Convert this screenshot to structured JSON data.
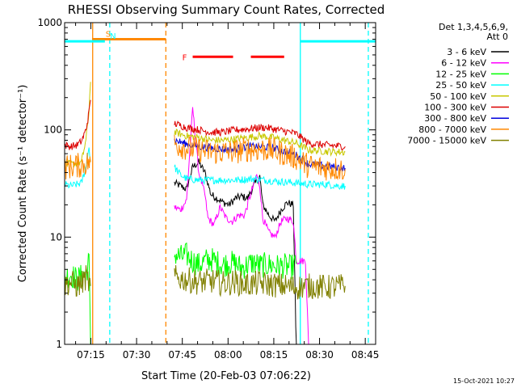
{
  "chart_data": {
    "type": "line",
    "title": "RHESSI Observing Summary Count Rates, Corrected",
    "ylabel": "Corrected Count Rate (s⁻¹ detector⁻¹)",
    "xlabel": "Start Time (20-Feb-03 07:06:22)",
    "footer": "15-Oct-2021 10:27",
    "x_unit": "minutes after 07:06:22",
    "xlim": [
      0,
      102
    ],
    "ylim": [
      1,
      1000
    ],
    "y_scale": "log",
    "xticks": [
      {
        "t": 8.6,
        "label": "07:15"
      },
      {
        "t": 23.6,
        "label": "07:30"
      },
      {
        "t": 38.6,
        "label": "07:45"
      },
      {
        "t": 53.6,
        "label": "08:00"
      },
      {
        "t": 68.6,
        "label": "08:15"
      },
      {
        "t": 83.6,
        "label": "08:30"
      },
      {
        "t": 98.6,
        "label": "08:45"
      }
    ],
    "yticks": [
      {
        "v": 1,
        "label": "1"
      },
      {
        "v": 10,
        "label": "10"
      },
      {
        "v": 100,
        "label": "100"
      },
      {
        "v": 1000,
        "label": "1000"
      }
    ],
    "legend": {
      "header": [
        "Det 1,3,4,5,6,9,",
        "Att 0"
      ],
      "position": "right"
    },
    "series": [
      {
        "name": "3 - 6 keV",
        "color": "#000000",
        "segments": [
          [
            [
              0,
              null
            ]
          ],
          [
            [
              36,
              32
            ],
            [
              38,
              30
            ],
            [
              40,
              28
            ],
            [
              42,
              45
            ],
            [
              44,
              50
            ],
            [
              46,
              40
            ],
            [
              48,
              25
            ],
            [
              50,
              23
            ],
            [
              52,
              21
            ],
            [
              54,
              20
            ],
            [
              56,
              23
            ],
            [
              58,
              24
            ],
            [
              60,
              23
            ],
            [
              62,
              30
            ],
            [
              64,
              37
            ],
            [
              65,
              20
            ],
            [
              67,
              16
            ],
            [
              69,
              14
            ],
            [
              71,
              18
            ],
            [
              73,
              21
            ],
            [
              75,
              20
            ],
            [
              76,
              0.8
            ]
          ]
        ]
      },
      {
        "name": "6 - 12 keV",
        "color": "#ff00ff",
        "segments": [
          [
            [
              36,
              19
            ],
            [
              38,
              18
            ],
            [
              40,
              22
            ],
            [
              42,
              160
            ],
            [
              43,
              80
            ],
            [
              44,
              40
            ],
            [
              46,
              25
            ],
            [
              47,
              15
            ],
            [
              49,
              13
            ],
            [
              51,
              19
            ],
            [
              53,
              15
            ],
            [
              55,
              14
            ],
            [
              57,
              16
            ],
            [
              59,
              16
            ],
            [
              61,
              25
            ],
            [
              63,
              38
            ],
            [
              64,
              30
            ],
            [
              65,
              15
            ],
            [
              67,
              11
            ],
            [
              69,
              10
            ],
            [
              71,
              14
            ],
            [
              73,
              15
            ],
            [
              75,
              14
            ],
            [
              76,
              6
            ],
            [
              79,
              6
            ],
            [
              80,
              1
            ]
          ]
        ]
      },
      {
        "name": "12 - 25 keV",
        "color": "#00ff00",
        "segments": [
          [
            [
              0,
              4.2
            ],
            [
              2,
              4.5
            ],
            [
              4,
              4.0
            ],
            [
              5.5,
              4.3
            ],
            [
              7,
              4.6
            ],
            [
              8,
              6
            ],
            [
              8.5,
              1
            ]
          ],
          [
            [
              36,
              7
            ],
            [
              38,
              6.5
            ],
            [
              40,
              6.8
            ],
            [
              42,
              6
            ],
            [
              44,
              5.5
            ],
            [
              46,
              6
            ],
            [
              48,
              6.2
            ],
            [
              50,
              5.8
            ],
            [
              52,
              5.5
            ],
            [
              54,
              5.8
            ],
            [
              56,
              5.6
            ],
            [
              58,
              5.2
            ],
            [
              60,
              5.5
            ],
            [
              62,
              5.8
            ],
            [
              64,
              5.4
            ],
            [
              66,
              5.5
            ],
            [
              68,
              5.5
            ],
            [
              70,
              5.3
            ],
            [
              72,
              5.4
            ],
            [
              74,
              5.2
            ],
            [
              76,
              5.6
            ]
          ]
        ]
      },
      {
        "name": "25 - 50 keV",
        "color": "#00ffff",
        "segments": [
          [
            [
              0,
              31
            ],
            [
              2,
              30
            ],
            [
              4,
              31
            ],
            [
              5.5,
              32
            ],
            [
              7,
              45
            ],
            [
              8,
              70
            ],
            [
              8.5,
              50
            ]
          ],
          [
            [
              36,
              45
            ],
            [
              38,
              38
            ],
            [
              40,
              35
            ],
            [
              44,
              34
            ],
            [
              50,
              34
            ],
            [
              56,
              34
            ],
            [
              62,
              35
            ],
            [
              66,
              34
            ],
            [
              70,
              33
            ],
            [
              76,
              32
            ],
            [
              80,
              31
            ],
            [
              86,
              31
            ],
            [
              90,
              30
            ],
            [
              92,
              30
            ]
          ]
        ]
      },
      {
        "name": "50 - 100 keV",
        "color": "#c8c800",
        "segments": [
          [
            [
              0,
              48
            ],
            [
              3,
              48
            ],
            [
              5.5,
              50
            ],
            [
              7,
              80
            ],
            [
              8,
              150
            ],
            [
              8.5,
              280
            ]
          ],
          [
            [
              36,
              95
            ],
            [
              40,
              88
            ],
            [
              44,
              85
            ],
            [
              48,
              80
            ],
            [
              52,
              80
            ],
            [
              56,
              82
            ],
            [
              60,
              85
            ],
            [
              64,
              88
            ],
            [
              68,
              85
            ],
            [
              72,
              80
            ],
            [
              76,
              75
            ],
            [
              80,
              65
            ],
            [
              86,
              63
            ],
            [
              92,
              62
            ]
          ]
        ]
      },
      {
        "name": "100 - 300 keV",
        "color": "#dd0000",
        "segments": [
          [
            [
              0,
              72
            ],
            [
              2,
              70
            ],
            [
              4,
              72
            ],
            [
              5.5,
              78
            ],
            [
              7,
              100
            ],
            [
              8,
              145
            ],
            [
              8.5,
              190
            ]
          ],
          [
            [
              36,
              115
            ],
            [
              40,
              105
            ],
            [
              44,
              100
            ],
            [
              48,
              95
            ],
            [
              52,
              95
            ],
            [
              56,
              100
            ],
            [
              60,
              102
            ],
            [
              64,
              105
            ],
            [
              66,
              105
            ],
            [
              70,
              100
            ],
            [
              74,
              95
            ],
            [
              76,
              92
            ],
            [
              80,
              75
            ],
            [
              86,
              72
            ],
            [
              92,
              70
            ]
          ]
        ]
      },
      {
        "name": "300 - 800 keV",
        "color": "#0000dd",
        "segments": [
          [
            [
              36,
              80
            ],
            [
              40,
              74
            ],
            [
              44,
              70
            ],
            [
              48,
              68
            ],
            [
              52,
              66
            ],
            [
              56,
              66
            ],
            [
              60,
              70
            ],
            [
              64,
              70
            ],
            [
              68,
              68
            ],
            [
              72,
              63
            ],
            [
              76,
              58
            ],
            [
              80,
              48
            ],
            [
              86,
              46
            ],
            [
              92,
              44
            ]
          ]
        ]
      },
      {
        "name": "800 - 7000 keV",
        "color": "#ff8800",
        "segments": [
          [
            [
              0,
              45
            ],
            [
              3,
              46
            ],
            [
              5.5,
              47
            ],
            [
              7,
              49
            ],
            [
              8.5,
              50
            ]
          ],
          [
            [
              36,
              74
            ],
            [
              40,
              68
            ],
            [
              44,
              65
            ],
            [
              48,
              62
            ],
            [
              52,
              62
            ],
            [
              56,
              63
            ],
            [
              60,
              66
            ],
            [
              64,
              66
            ],
            [
              68,
              65
            ],
            [
              72,
              60
            ],
            [
              76,
              55
            ],
            [
              80,
              46
            ],
            [
              86,
              44
            ],
            [
              92,
              43
            ]
          ]
        ]
      },
      {
        "name": "7000 - 15000 keV",
        "color": "#808000",
        "segments": [
          [
            [
              0,
              3.6
            ],
            [
              2,
              3.8
            ],
            [
              4,
              3.5
            ],
            [
              5.5,
              3.7
            ],
            [
              7,
              4.2
            ],
            [
              8.5,
              3.5
            ]
          ],
          [
            [
              36,
              4.2
            ],
            [
              40,
              4.0
            ],
            [
              44,
              3.8
            ],
            [
              48,
              3.9
            ],
            [
              52,
              3.7
            ],
            [
              56,
              3.8
            ],
            [
              60,
              3.6
            ],
            [
              64,
              3.7
            ],
            [
              68,
              3.6
            ],
            [
              72,
              3.5
            ],
            [
              76,
              3.4
            ],
            [
              80,
              3.5
            ],
            [
              86,
              3.4
            ],
            [
              92,
              3.5
            ]
          ]
        ]
      }
    ],
    "flags": [
      {
        "label": "S",
        "color": "#ff8800",
        "t0": 9,
        "t1": 33.2,
        "level": 700
      },
      {
        "label": "N",
        "color": "#00ffff",
        "t0": 0,
        "t1": 13.2,
        "level": 670
      },
      {
        "label": "N",
        "color": "#00ffff",
        "t0": 77.3,
        "t1": 102,
        "level": 670
      },
      {
        "label": "F",
        "color": "#ff0000",
        "t0": 42,
        "t1": 72,
        "level": 480,
        "dashed": true
      }
    ],
    "vertical_lines": [
      {
        "t": 9.2,
        "color": "#ff8800",
        "style": "solid"
      },
      {
        "t": 14.8,
        "color": "#00ffff",
        "style": "dashed"
      },
      {
        "t": 33.2,
        "color": "#ff8800",
        "style": "dashed"
      },
      {
        "t": 77.3,
        "color": "#00ffff",
        "style": "solid"
      },
      {
        "t": 99.6,
        "color": "#00ffff",
        "style": "dashed"
      }
    ]
  }
}
